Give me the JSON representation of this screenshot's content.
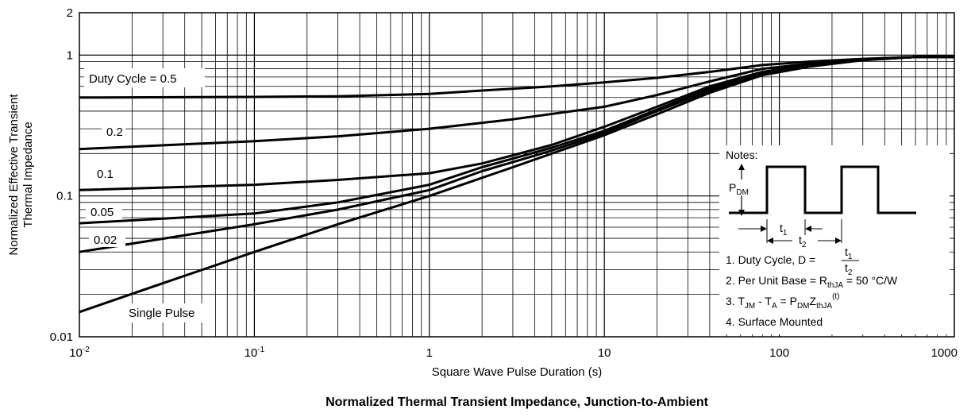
{
  "chart_data": {
    "type": "line",
    "title": "",
    "caption": "Normalized Thermal Transient Impedance, Junction-to-Ambient",
    "xlabel": "Square Wave Pulse Duration (s)",
    "ylabel": [
      "Normalized Effective Transient",
      "Thermal Impedance"
    ],
    "x_scale": "log",
    "y_scale": "log",
    "xlim": [
      0.01,
      1000
    ],
    "ylim": [
      0.01,
      2
    ],
    "grid": true,
    "x_ticks": [
      {
        "value": 0.01,
        "base": "10",
        "exp": "-2"
      },
      {
        "value": 0.1,
        "base": "10",
        "exp": "-1"
      },
      {
        "value": 1,
        "label": "1"
      },
      {
        "value": 10,
        "label": "10"
      },
      {
        "value": 100,
        "label": "100"
      },
      {
        "value": 1000,
        "label": "1000"
      }
    ],
    "y_ticks": [
      {
        "value": 0.01,
        "label": "0.01"
      },
      {
        "value": 0.1,
        "label": "0.1"
      },
      {
        "value": 1,
        "label": "1"
      },
      {
        "value": 2,
        "label": "2"
      }
    ],
    "series": [
      {
        "name": "Duty Cycle = 0.5",
        "x": [
          0.01,
          0.1,
          0.3,
          1,
          2,
          5,
          10,
          20,
          40,
          80,
          150,
          300,
          600,
          1000
        ],
        "y": [
          0.5,
          0.505,
          0.51,
          0.53,
          0.56,
          0.6,
          0.64,
          0.69,
          0.76,
          0.85,
          0.9,
          0.94,
          0.97,
          0.97
        ]
      },
      {
        "name": "0.2",
        "x": [
          0.01,
          0.1,
          0.3,
          1,
          3,
          10,
          20,
          40,
          80,
          150,
          300,
          600,
          1000
        ],
        "y": [
          0.215,
          0.245,
          0.265,
          0.3,
          0.35,
          0.43,
          0.52,
          0.65,
          0.8,
          0.87,
          0.93,
          0.97,
          0.97
        ]
      },
      {
        "name": "0.1",
        "x": [
          0.01,
          0.1,
          0.3,
          1,
          2,
          5,
          10,
          20,
          40,
          80,
          150,
          300,
          600,
          1000
        ],
        "y": [
          0.11,
          0.12,
          0.13,
          0.145,
          0.17,
          0.23,
          0.31,
          0.43,
          0.6,
          0.76,
          0.86,
          0.93,
          0.97,
          0.97
        ]
      },
      {
        "name": "0.05",
        "x": [
          0.01,
          0.1,
          0.3,
          1,
          2,
          5,
          10,
          20,
          40,
          80,
          150,
          300,
          600,
          1000
        ],
        "y": [
          0.064,
          0.075,
          0.09,
          0.12,
          0.16,
          0.22,
          0.29,
          0.41,
          0.58,
          0.74,
          0.85,
          0.93,
          0.97,
          0.97
        ]
      },
      {
        "name": "0.02",
        "x": [
          0.01,
          0.1,
          0.3,
          1,
          2,
          5,
          10,
          20,
          40,
          80,
          150,
          300,
          600,
          1000
        ],
        "y": [
          0.04,
          0.063,
          0.08,
          0.11,
          0.15,
          0.21,
          0.28,
          0.4,
          0.56,
          0.73,
          0.84,
          0.92,
          0.97,
          0.97
        ]
      },
      {
        "name": "Single Pulse",
        "x": [
          0.01,
          0.03,
          0.1,
          0.3,
          1,
          3,
          10,
          20,
          40,
          80,
          150,
          300,
          600,
          1000
        ],
        "y": [
          0.015,
          0.024,
          0.04,
          0.063,
          0.1,
          0.16,
          0.27,
          0.38,
          0.54,
          0.72,
          0.83,
          0.92,
          0.97,
          0.97
        ]
      }
    ],
    "notes": {
      "heading": "Notes:",
      "pdm_base": "P",
      "pdm_sub": "DM",
      "t1_base": "t",
      "t1_sub": "1",
      "t2_base": "t",
      "t2_sub": "2",
      "note1_text": "1. Duty Cycle, D = ",
      "note2_text": "2. Per Unit Base = R",
      "note2_sub": "thJA",
      "note2_tail": " = 50 °C/W",
      "note3_a": "3. T",
      "note3_a_sub": "JM",
      "note3_b": " - T",
      "note3_b_sub": "A",
      "note3_c": " = P",
      "note3_c_sub": "DM",
      "note3_d": "Z",
      "note3_d_sub": "thJA",
      "note3_sup": "(t)",
      "note4_text": "4. Surface Mounted"
    }
  }
}
